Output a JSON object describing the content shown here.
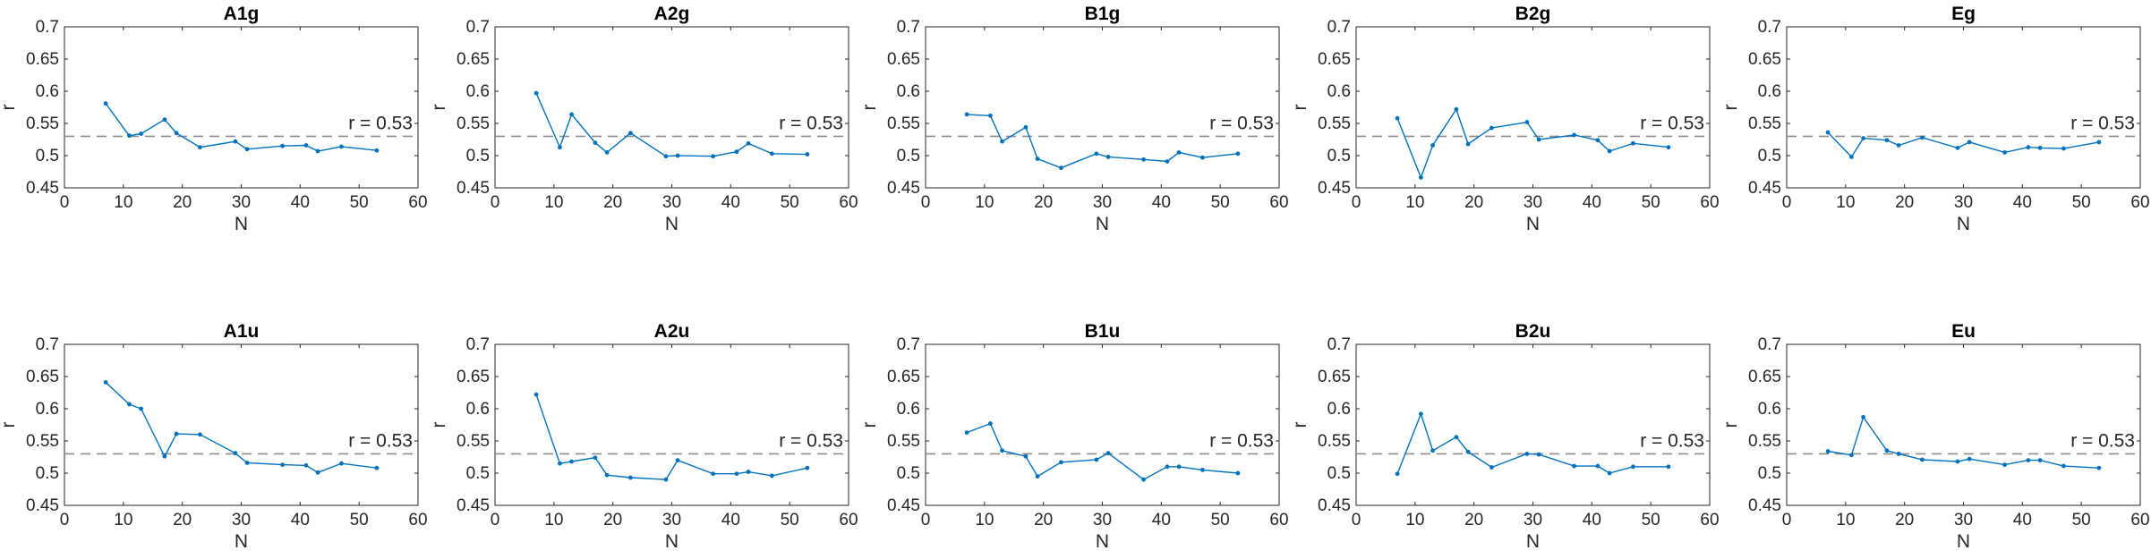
{
  "chart_data": [
    {
      "type": "line",
      "title": "A1g",
      "xlabel": "N",
      "ylabel": "r",
      "xlim": [
        0,
        60
      ],
      "ylim": [
        0.45,
        0.7
      ],
      "x": [
        7,
        11,
        13,
        17,
        19,
        23,
        29,
        31,
        37,
        41,
        43,
        47,
        53
      ],
      "y": [
        0.581,
        0.531,
        0.534,
        0.556,
        0.535,
        0.513,
        0.522,
        0.51,
        0.515,
        0.516,
        0.507,
        0.514,
        0.508
      ],
      "reference_line": {
        "y": 0.53,
        "label": "r = 0.53"
      }
    },
    {
      "type": "line",
      "title": "A2g",
      "xlabel": "N",
      "ylabel": "r",
      "xlim": [
        0,
        60
      ],
      "ylim": [
        0.45,
        0.7
      ],
      "x": [
        7,
        11,
        13,
        17,
        19,
        23,
        29,
        31,
        37,
        41,
        43,
        47,
        53
      ],
      "y": [
        0.597,
        0.513,
        0.564,
        0.52,
        0.505,
        0.535,
        0.499,
        0.5,
        0.499,
        0.506,
        0.519,
        0.503,
        0.502
      ],
      "reference_line": {
        "y": 0.53,
        "label": "r = 0.53"
      }
    },
    {
      "type": "line",
      "title": "B1g",
      "xlabel": "N",
      "ylabel": "r",
      "xlim": [
        0,
        60
      ],
      "ylim": [
        0.45,
        0.7
      ],
      "x": [
        7,
        11,
        13,
        17,
        19,
        23,
        29,
        31,
        37,
        41,
        43,
        47,
        53
      ],
      "y": [
        0.564,
        0.562,
        0.522,
        0.544,
        0.495,
        0.481,
        0.503,
        0.498,
        0.494,
        0.491,
        0.505,
        0.497,
        0.503
      ],
      "reference_line": {
        "y": 0.53,
        "label": "r = 0.53"
      }
    },
    {
      "type": "line",
      "title": "B2g",
      "xlabel": "N",
      "ylabel": "r",
      "xlim": [
        0,
        60
      ],
      "ylim": [
        0.45,
        0.7
      ],
      "x": [
        7,
        11,
        13,
        17,
        19,
        23,
        29,
        31,
        37,
        41,
        43,
        47,
        53
      ],
      "y": [
        0.558,
        0.466,
        0.516,
        0.572,
        0.518,
        0.543,
        0.552,
        0.525,
        0.532,
        0.524,
        0.507,
        0.519,
        0.513
      ],
      "reference_line": {
        "y": 0.53,
        "label": "r = 0.53"
      }
    },
    {
      "type": "line",
      "title": "Eg",
      "xlabel": "N",
      "ylabel": "r",
      "xlim": [
        0,
        60
      ],
      "ylim": [
        0.45,
        0.7
      ],
      "x": [
        7,
        11,
        13,
        17,
        19,
        23,
        29,
        31,
        37,
        41,
        43,
        47,
        53
      ],
      "y": [
        0.536,
        0.498,
        0.527,
        0.524,
        0.516,
        0.528,
        0.512,
        0.521,
        0.505,
        0.513,
        0.512,
        0.511,
        0.521
      ],
      "reference_line": {
        "y": 0.53,
        "label": "r = 0.53"
      }
    },
    {
      "type": "line",
      "title": "A1u",
      "xlabel": "N",
      "ylabel": "r",
      "xlim": [
        0,
        60
      ],
      "ylim": [
        0.45,
        0.7
      ],
      "x": [
        7,
        11,
        13,
        17,
        19,
        23,
        29,
        31,
        37,
        41,
        43,
        47,
        53
      ],
      "y": [
        0.641,
        0.607,
        0.6,
        0.526,
        0.561,
        0.56,
        0.531,
        0.516,
        0.513,
        0.512,
        0.501,
        0.515,
        0.508
      ],
      "reference_line": {
        "y": 0.53,
        "label": "r = 0.53"
      }
    },
    {
      "type": "line",
      "title": "A2u",
      "xlabel": "N",
      "ylabel": "r",
      "xlim": [
        0,
        60
      ],
      "ylim": [
        0.45,
        0.7
      ],
      "x": [
        7,
        11,
        13,
        17,
        19,
        23,
        29,
        31,
        37,
        41,
        43,
        47,
        53
      ],
      "y": [
        0.622,
        0.515,
        0.518,
        0.524,
        0.497,
        0.493,
        0.49,
        0.52,
        0.499,
        0.499,
        0.502,
        0.496,
        0.508
      ],
      "reference_line": {
        "y": 0.53,
        "label": "r = 0.53"
      }
    },
    {
      "type": "line",
      "title": "B1u",
      "xlabel": "N",
      "ylabel": "r",
      "xlim": [
        0,
        60
      ],
      "ylim": [
        0.45,
        0.7
      ],
      "x": [
        7,
        11,
        13,
        17,
        19,
        23,
        29,
        31,
        37,
        41,
        43,
        47,
        53
      ],
      "y": [
        0.563,
        0.577,
        0.535,
        0.526,
        0.495,
        0.517,
        0.521,
        0.531,
        0.49,
        0.51,
        0.51,
        0.505,
        0.5
      ],
      "reference_line": {
        "y": 0.53,
        "label": "r = 0.53"
      }
    },
    {
      "type": "line",
      "title": "B2u",
      "xlabel": "N",
      "ylabel": "r",
      "xlim": [
        0,
        60
      ],
      "ylim": [
        0.45,
        0.7
      ],
      "x": [
        7,
        11,
        13,
        17,
        19,
        23,
        29,
        31,
        37,
        41,
        43,
        47,
        53
      ],
      "y": [
        0.499,
        0.592,
        0.535,
        0.556,
        0.533,
        0.509,
        0.53,
        0.529,
        0.511,
        0.511,
        0.5,
        0.51,
        0.51
      ],
      "reference_line": {
        "y": 0.53,
        "label": "r = 0.53"
      }
    },
    {
      "type": "line",
      "title": "Eu",
      "xlabel": "N",
      "ylabel": "r",
      "xlim": [
        0,
        60
      ],
      "ylim": [
        0.45,
        0.7
      ],
      "x": [
        7,
        11,
        13,
        17,
        19,
        23,
        29,
        31,
        37,
        41,
        43,
        47,
        53
      ],
      "y": [
        0.534,
        0.528,
        0.587,
        0.535,
        0.53,
        0.521,
        0.518,
        0.522,
        0.513,
        0.52,
        0.52,
        0.511,
        0.508
      ],
      "reference_line": {
        "y": 0.53,
        "label": "r = 0.53"
      }
    }
  ],
  "axes": {
    "xticks": [
      0,
      10,
      20,
      30,
      40,
      50,
      60
    ],
    "xtick_labels": [
      "0",
      "10",
      "20",
      "30",
      "40",
      "50",
      "60"
    ],
    "yticks": [
      0.45,
      0.5,
      0.55,
      0.6,
      0.65,
      0.7
    ],
    "ytick_labels": [
      "0.45",
      "0.5",
      "0.55",
      "0.6",
      "0.65",
      "0.7"
    ]
  },
  "colors": {
    "series": "#0072BD",
    "reference": "#8c8c8c",
    "axis": "#262626"
  }
}
